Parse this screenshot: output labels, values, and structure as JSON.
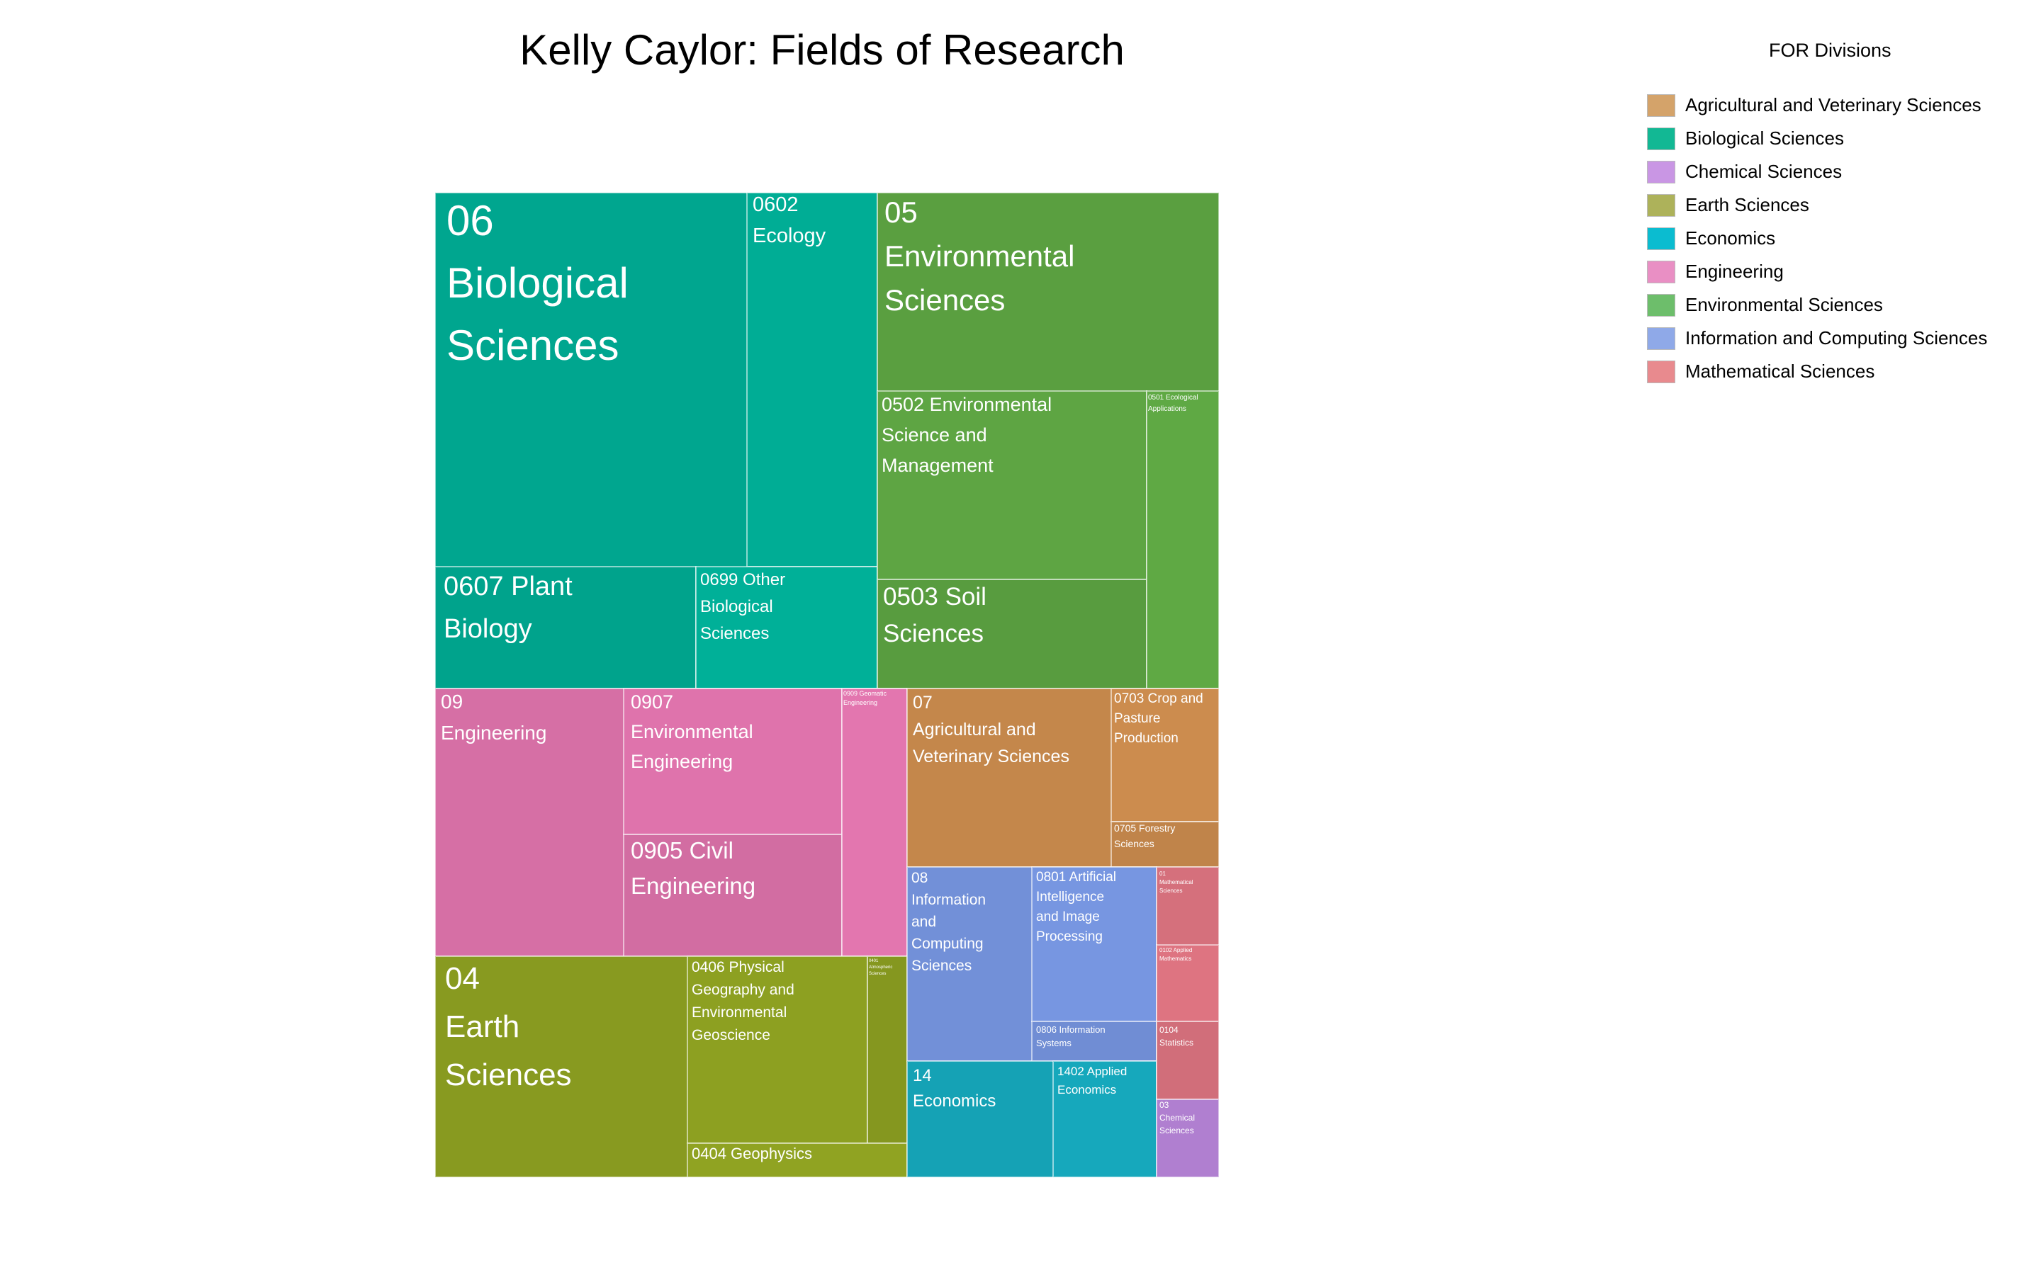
{
  "chart_data": {
    "type": "treemap",
    "title": "Kelly Caylor: Fields of Research",
    "legend": {
      "title": "FOR Divisions",
      "placement": "right",
      "items": [
        {
          "label": "Agricultural and Veterinary Sciences",
          "color": "#d4a36a"
        },
        {
          "label": "Biological Sciences",
          "color": "#12b894"
        },
        {
          "label": "Chemical Sciences",
          "color": "#c996e4"
        },
        {
          "label": "Earth Sciences",
          "color": "#adb25a"
        },
        {
          "label": "Economics",
          "color": "#0bbcd0"
        },
        {
          "label": "Engineering",
          "color": "#e98fc4"
        },
        {
          "label": "Environmental Sciences",
          "color": "#6dbe6b"
        },
        {
          "label": "Information and Computing Sciences",
          "color": "#8fa9e8"
        },
        {
          "label": "Mathematical Sciences",
          "color": "#e88a8e"
        }
      ]
    },
    "divisions": [
      {
        "code": "06",
        "name": "Biological Sciences",
        "color": "#00a68f",
        "groups": [
          {
            "code": "0602",
            "name": "Ecology"
          },
          {
            "code": "0607",
            "name": "Plant Biology"
          },
          {
            "code": "0699",
            "name": "Other Biological Sciences"
          }
        ]
      },
      {
        "code": "05",
        "name": "Environmental Sciences",
        "color": "#5a9f40",
        "groups": [
          {
            "code": "0502",
            "name": "Environmental Science and Management"
          },
          {
            "code": "0503",
            "name": "Soil Sciences"
          },
          {
            "code": "0501",
            "name": "Ecological Applications"
          }
        ]
      },
      {
        "code": "09",
        "name": "Engineering",
        "color": "#d66fa5",
        "groups": [
          {
            "code": "0907",
            "name": "Environmental Engineering"
          },
          {
            "code": "0905",
            "name": "Civil Engineering"
          },
          {
            "code": "0909",
            "name": "Geomatic Engineering"
          }
        ]
      },
      {
        "code": "07",
        "name": "Agricultural and Veterinary Sciences",
        "color": "#c4874b",
        "groups": [
          {
            "code": "0703",
            "name": "Crop and Pasture Production"
          },
          {
            "code": "0705",
            "name": "Forestry Sciences"
          }
        ]
      },
      {
        "code": "04",
        "name": "Earth Sciences",
        "color": "#889a20",
        "groups": [
          {
            "code": "0406",
            "name": "Physical Geography and Environmental Geoscience"
          },
          {
            "code": "0401",
            "name": "Atmospheric Sciences"
          },
          {
            "code": "0404",
            "name": "Geophysics"
          }
        ]
      },
      {
        "code": "08",
        "name": "Information and Computing Sciences",
        "color": "#7290d8",
        "groups": [
          {
            "code": "0801",
            "name": "Artificial Intelligence and Image Processing"
          },
          {
            "code": "0806",
            "name": "Information Systems"
          }
        ]
      },
      {
        "code": "14",
        "name": "Economics",
        "color": "#15a2b5",
        "groups": [
          {
            "code": "1402",
            "name": "Applied Economics"
          }
        ]
      },
      {
        "code": "01",
        "name": "Mathematical Sciences",
        "color": "#d5707c",
        "groups": [
          {
            "code": "0102",
            "name": "Applied Mathematics"
          },
          {
            "code": "0104",
            "name": "Statistics"
          }
        ]
      },
      {
        "code": "03",
        "name": "Chemical Sciences",
        "color": "#b07fd0",
        "groups": []
      }
    ]
  }
}
